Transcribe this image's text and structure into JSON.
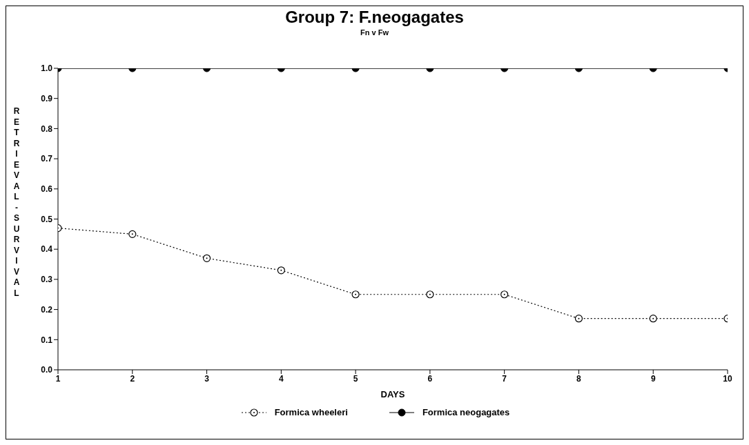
{
  "chart_data": {
    "type": "line",
    "title": "Group 7: F.neogagates",
    "subtitle": "Fn v Fw",
    "xlabel": "DAYS",
    "ylabel": "RETRIEVAL - SURVIVAL",
    "x": [
      1,
      2,
      3,
      4,
      5,
      6,
      7,
      8,
      9,
      10
    ],
    "series": [
      {
        "name": "Formica wheeleri",
        "color": "#000000",
        "marker": "circle-open",
        "line_style": "dotted",
        "values": [
          0.47,
          0.45,
          0.37,
          0.33,
          0.25,
          0.25,
          0.25,
          0.17,
          0.17,
          0.17
        ]
      },
      {
        "name": "Formica neogagates",
        "color": "#000000",
        "marker": "circle",
        "line_style": "solid",
        "values": [
          1.0,
          1.0,
          1.0,
          1.0,
          1.0,
          1.0,
          1.0,
          1.0,
          1.0,
          1.0
        ]
      }
    ],
    "xlim": [
      1,
      10
    ],
    "xticks": [
      1,
      2,
      3,
      4,
      5,
      6,
      7,
      8,
      9,
      10
    ],
    "ylim": [
      0,
      1
    ],
    "yticks": [
      {
        "value": 0,
        "label": "0.0"
      },
      {
        "value": 0.1,
        "label": "0.1"
      },
      {
        "value": 0.2,
        "label": "0.2"
      },
      {
        "value": 0.3,
        "label": "0.3"
      },
      {
        "value": 0.4,
        "label": "0.4"
      },
      {
        "value": 0.5,
        "label": "0.5"
      },
      {
        "value": 0.6,
        "label": "0.6"
      },
      {
        "value": 0.7,
        "label": "0.7"
      },
      {
        "value": 0.8,
        "label": "0.8"
      },
      {
        "value": 0.9,
        "label": "0.9"
      },
      {
        "value": 1,
        "label": "1.0"
      }
    ],
    "grid": false,
    "legend": "bottom"
  }
}
